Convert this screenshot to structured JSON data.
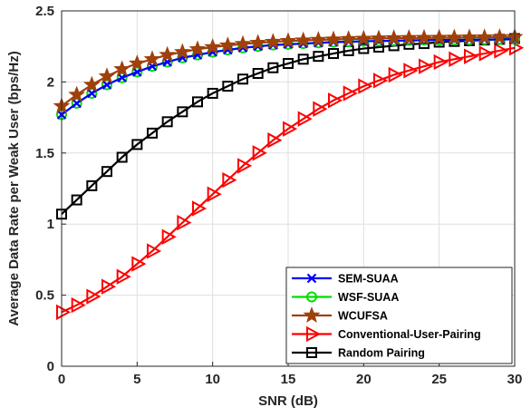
{
  "chart_data": {
    "type": "line",
    "xlabel": "SNR (dB)",
    "ylabel": "Average Data Rate per Weak User (bps/Hz)",
    "xlim": [
      0,
      30
    ],
    "ylim": [
      0,
      2.5
    ],
    "xticks": [
      0,
      5,
      10,
      15,
      20,
      25,
      30
    ],
    "xtick_labels": [
      "0",
      "5",
      "10",
      "15",
      "20",
      "25",
      "30"
    ],
    "yticks": [
      0,
      0.5,
      1,
      1.5,
      2,
      2.5
    ],
    "ytick_labels": [
      "0",
      "0.5",
      "1",
      "1.5",
      "2",
      "2.5"
    ],
    "grid": true,
    "legend_position": "bottom-right",
    "x": [
      0,
      1,
      2,
      3,
      4,
      5,
      6,
      7,
      8,
      9,
      10,
      11,
      12,
      13,
      14,
      15,
      16,
      17,
      18,
      19,
      20,
      21,
      22,
      23,
      24,
      25,
      26,
      27,
      28,
      29,
      30
    ],
    "series": [
      {
        "name": "SEM-SUAA",
        "color": "#0000ff",
        "marker": "x",
        "values": [
          1.77,
          1.85,
          1.92,
          1.98,
          2.03,
          2.07,
          2.11,
          2.14,
          2.17,
          2.19,
          2.21,
          2.225,
          2.24,
          2.25,
          2.26,
          2.265,
          2.27,
          2.275,
          2.28,
          2.283,
          2.286,
          2.288,
          2.29,
          2.292,
          2.294,
          2.295,
          2.296,
          2.297,
          2.298,
          2.299,
          2.3
        ]
      },
      {
        "name": "WSF-SUAA",
        "color": "#00dd00",
        "marker": "circle",
        "values": [
          1.77,
          1.85,
          1.92,
          1.98,
          2.03,
          2.07,
          2.11,
          2.14,
          2.17,
          2.19,
          2.21,
          2.225,
          2.24,
          2.25,
          2.26,
          2.265,
          2.27,
          2.275,
          2.28,
          2.283,
          2.286,
          2.288,
          2.29,
          2.292,
          2.294,
          2.295,
          2.296,
          2.297,
          2.298,
          2.299,
          2.3
        ]
      },
      {
        "name": "WCUFSA",
        "color": "#a0400a",
        "marker": "star",
        "values": [
          1.83,
          1.91,
          1.98,
          2.04,
          2.09,
          2.13,
          2.16,
          2.19,
          2.21,
          2.23,
          2.245,
          2.257,
          2.267,
          2.275,
          2.282,
          2.288,
          2.292,
          2.296,
          2.299,
          2.302,
          2.304,
          2.306,
          2.308,
          2.309,
          2.31,
          2.311,
          2.312,
          2.313,
          2.314,
          2.315,
          2.316
        ]
      },
      {
        "name": "Conventional-User-Pairing",
        "color": "#ff0000",
        "marker": "triangle-right",
        "values": [
          0.38,
          0.43,
          0.49,
          0.56,
          0.63,
          0.72,
          0.81,
          0.91,
          1.01,
          1.11,
          1.21,
          1.31,
          1.41,
          1.5,
          1.59,
          1.67,
          1.74,
          1.81,
          1.87,
          1.92,
          1.97,
          2.01,
          2.05,
          2.08,
          2.11,
          2.14,
          2.16,
          2.18,
          2.2,
          2.22,
          2.24
        ]
      },
      {
        "name": "Random Pairing",
        "color": "#000000",
        "marker": "square",
        "values": [
          1.07,
          1.17,
          1.27,
          1.37,
          1.47,
          1.56,
          1.64,
          1.72,
          1.79,
          1.86,
          1.92,
          1.97,
          2.02,
          2.06,
          2.1,
          2.13,
          2.16,
          2.18,
          2.2,
          2.22,
          2.235,
          2.245,
          2.255,
          2.265,
          2.27,
          2.28,
          2.285,
          2.29,
          2.295,
          2.3,
          2.305
        ]
      }
    ]
  }
}
